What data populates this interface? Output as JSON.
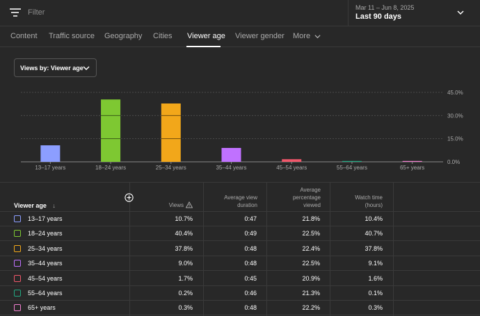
{
  "filter": {
    "placeholder": "Filter"
  },
  "date": {
    "range": "Mar 11 – Jun 8, 2025",
    "label": "Last 90 days"
  },
  "tabs": [
    "Content",
    "Traffic source",
    "Geography",
    "Cities",
    "Viewer age",
    "Viewer gender",
    "More"
  ],
  "active_tab": "Viewer age",
  "dropdown": {
    "label": "Views by: Viewer age"
  },
  "chart_data": {
    "type": "bar",
    "categories": [
      "13–17 years",
      "18–24 years",
      "25–34 years",
      "35–44 years",
      "45–54 years",
      "55–64 years",
      "65+ years"
    ],
    "values": [
      10.7,
      40.4,
      37.8,
      9.0,
      1.7,
      0.2,
      0.3
    ],
    "colors": [
      "#8c9eff",
      "#7ec832",
      "#f2a71a",
      "#c071ff",
      "#f0576a",
      "#22a882",
      "#f27fcf"
    ],
    "yticks": [
      "0.0%",
      "15.0%",
      "30.0%",
      "45.0%"
    ],
    "ylim": [
      0,
      45
    ],
    "grid": true
  },
  "table": {
    "headers": {
      "age": "Viewer age",
      "views": "Views",
      "avg_duration": [
        "Average view",
        "duration"
      ],
      "avg_pct": [
        "Average",
        "percentage",
        "viewed"
      ],
      "watch_time": [
        "Watch time",
        "(hours)"
      ]
    },
    "rows": [
      {
        "age": "13–17 years",
        "views": "10.7%",
        "duration": "0:47",
        "pct": "21.8%",
        "watch": "10.4%"
      },
      {
        "age": "18–24 years",
        "views": "40.4%",
        "duration": "0:49",
        "pct": "22.5%",
        "watch": "40.7%"
      },
      {
        "age": "25–34 years",
        "views": "37.8%",
        "duration": "0:48",
        "pct": "22.4%",
        "watch": "37.8%"
      },
      {
        "age": "35–44 years",
        "views": "9.0%",
        "duration": "0:48",
        "pct": "22.5%",
        "watch": "9.1%"
      },
      {
        "age": "45–54 years",
        "views": "1.7%",
        "duration": "0:45",
        "pct": "20.9%",
        "watch": "1.6%"
      },
      {
        "age": "55–64 years",
        "views": "0.2%",
        "duration": "0:46",
        "pct": "21.3%",
        "watch": "0.1%"
      },
      {
        "age": "65+ years",
        "views": "0.3%",
        "duration": "0:48",
        "pct": "22.2%",
        "watch": "0.3%"
      }
    ]
  }
}
